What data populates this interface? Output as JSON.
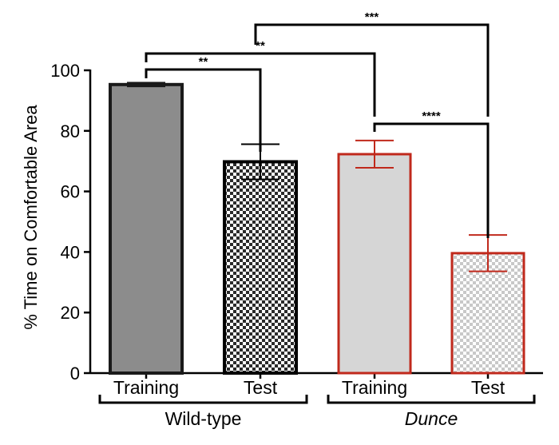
{
  "chart_data": {
    "type": "bar",
    "title": "",
    "xlabel": "",
    "ylabel": "% Time on Comfortable Area",
    "ylim": [
      0,
      100
    ],
    "yticks": [
      0,
      20,
      40,
      60,
      80,
      100
    ],
    "categories": [
      "Training",
      "Test",
      "Training",
      "Test"
    ],
    "groups": [
      {
        "name": "Wild-type",
        "members": [
          0,
          1
        ],
        "italic": false
      },
      {
        "name": "Dunce",
        "members": [
          2,
          3
        ],
        "italic": true
      }
    ],
    "values": [
      95.3,
      69.8,
      72.3,
      39.6
    ],
    "errors": [
      0.6,
      5.8,
      4.5,
      6.0
    ],
    "styles": [
      {
        "fill": "#8c8c8c",
        "stroke": "#1a1a1a",
        "pattern": "solid"
      },
      {
        "fill": "#2b2b2b",
        "stroke": "#000000",
        "pattern": "checker"
      },
      {
        "fill": "#d6d6d6",
        "stroke": "#c0291c",
        "pattern": "solid"
      },
      {
        "fill": "#c8c8c8",
        "stroke": "#c0291c",
        "pattern": "checker"
      }
    ],
    "significance": [
      {
        "from": 0,
        "to": 1,
        "label": "**"
      },
      {
        "from": 0,
        "to": 2,
        "label": "**"
      },
      {
        "from": 2,
        "to": 3,
        "label": "****"
      },
      {
        "from": 1,
        "to": 3,
        "label": "***",
        "from_midpoint_of": [
          0,
          1
        ]
      }
    ]
  }
}
